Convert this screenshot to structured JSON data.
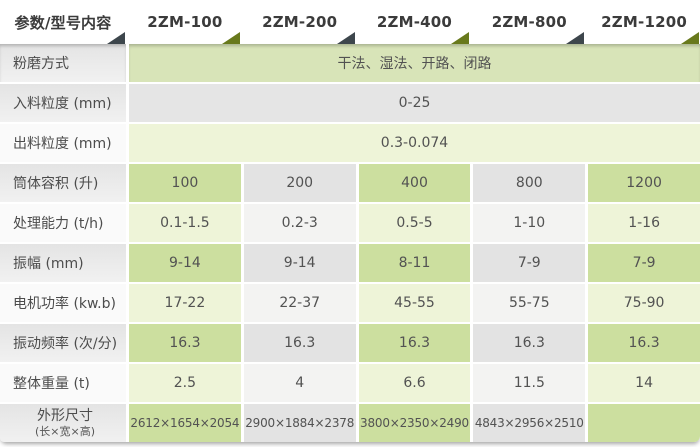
{
  "header": {
    "cells": [
      {
        "label": "参数/型号内容",
        "triangle": "dark"
      },
      {
        "label": "2ZM-100",
        "triangle": "green"
      },
      {
        "label": "2ZM-200",
        "triangle": "dark"
      },
      {
        "label": "2ZM-400",
        "triangle": "green"
      },
      {
        "label": "2ZM-800",
        "triangle": "dark"
      },
      {
        "label": "2ZM-1200",
        "triangle": "green"
      }
    ]
  },
  "rows": [
    {
      "label": "粉磨方式",
      "value": "干法、湿法、开路、闭路"
    },
    {
      "label": "入料粒度 (mm)",
      "value": "0-25"
    },
    {
      "label": "出料粒度 (mm)",
      "value": "0.3-0.074"
    },
    {
      "label": "筒体容积 (升)",
      "cells": [
        "100",
        "200",
        "400",
        "800",
        "1200"
      ]
    },
    {
      "label": "处理能力 (t/h)",
      "cells": [
        "0.1-1.5",
        "0.2-3",
        "0.5-5",
        "1-10",
        "1-16"
      ]
    },
    {
      "label": "振幅 (mm)",
      "cells": [
        "9-14",
        "9-14",
        "8-11",
        "7-9",
        "7-9"
      ]
    },
    {
      "label": "电机功率 (kw.b)",
      "cells": [
        "17-22",
        "22-37",
        "45-55",
        "55-75",
        "75-90"
      ]
    },
    {
      "label": "振动频率 (次/分)",
      "cells": [
        "16.3",
        "16.3",
        "16.3",
        "16.3",
        "16.3"
      ]
    },
    {
      "label": "整体重量 (t)",
      "cells": [
        "2.5",
        "4",
        "6.6",
        "11.5",
        "14"
      ]
    },
    {
      "label": "外形尺寸",
      "label2": "(长×宽×高)",
      "cells": [
        "2612×1654×2054",
        "2900×1884×2378",
        "3800×2350×2490",
        "4843×2956×2510",
        ""
      ]
    }
  ],
  "colors": {
    "cell_green_strong": "#ccdf9f",
    "cell_green_pale": "#eef4d8",
    "cell_gray_strong": "#e3e3e3",
    "cell_gray_pale": "#f3f3f2",
    "span_green": "#d8e4b8",
    "span_gray": "#e5e5e5",
    "span_green_pale": "#eef4d8",
    "triangle_dark": "#3d464c",
    "triangle_green": "#68791c"
  }
}
